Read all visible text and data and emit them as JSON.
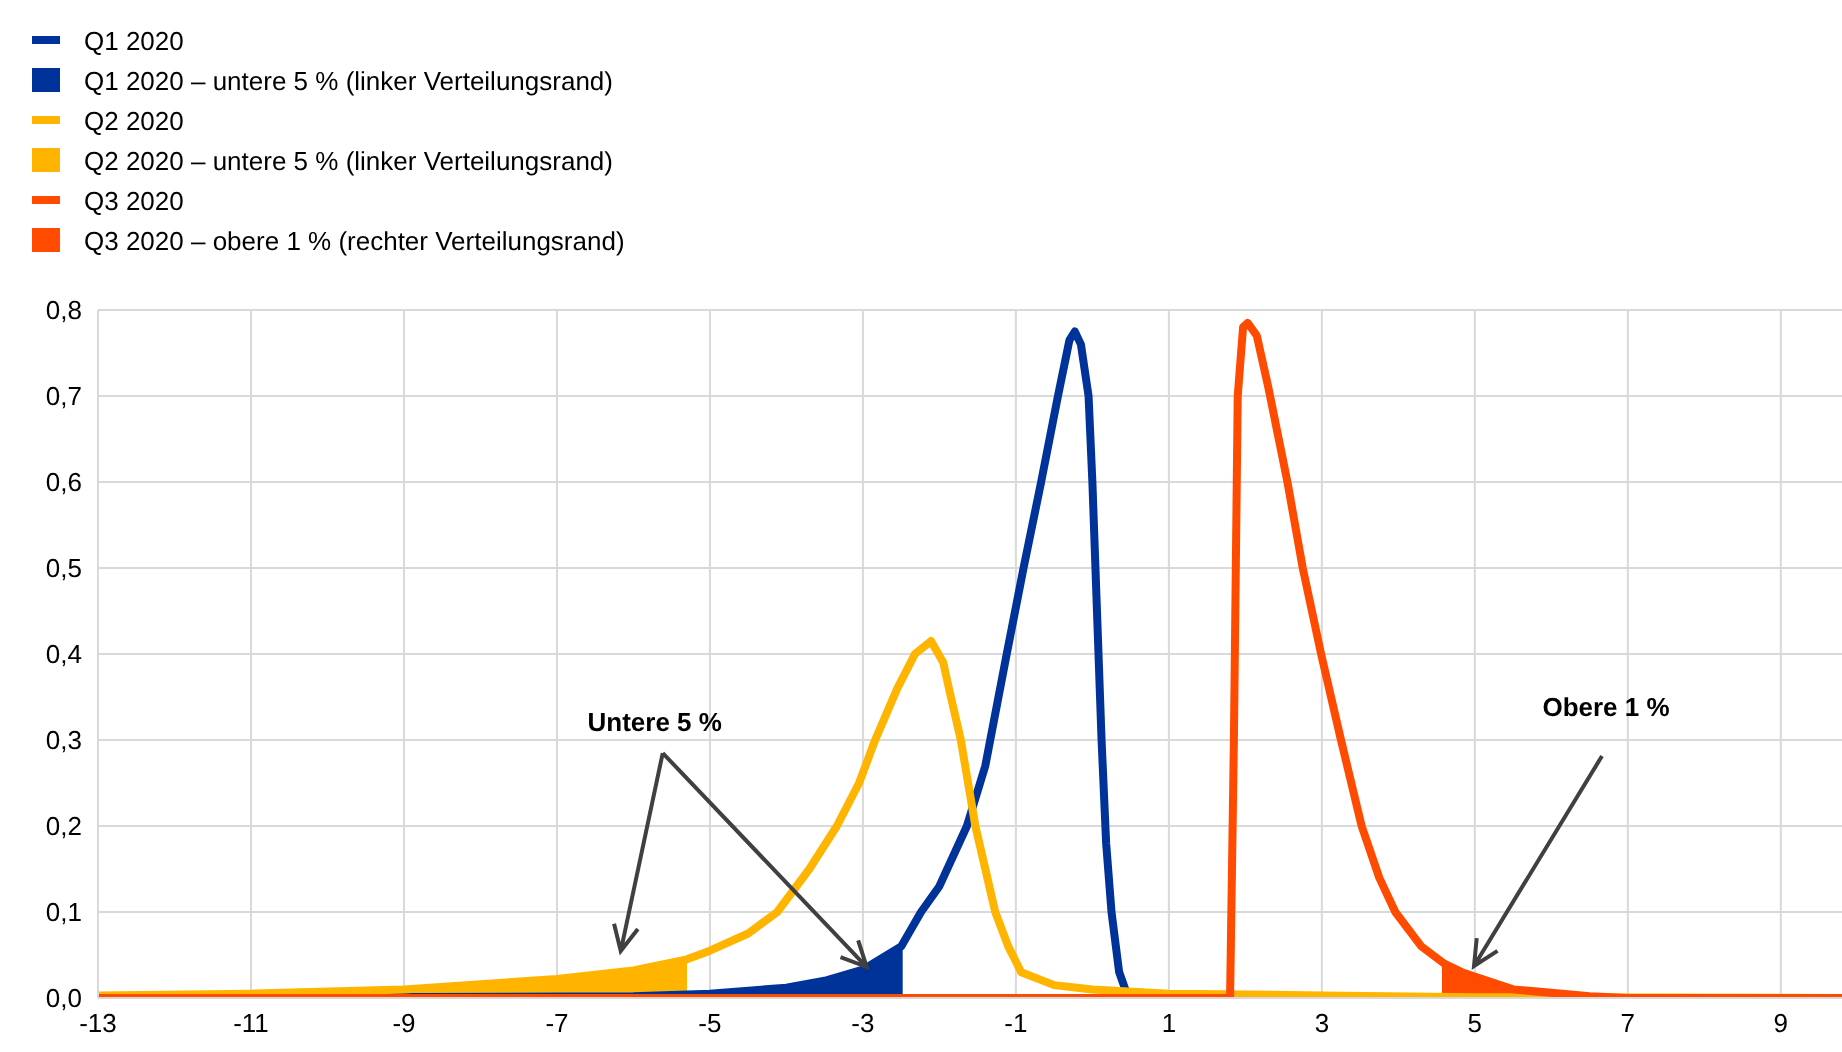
{
  "chart_data": {
    "type": "line",
    "xlim": [
      -13,
      9.8
    ],
    "xticks": [
      -13,
      -11,
      -9,
      -7,
      -5,
      -3,
      -1,
      1,
      3,
      5,
      7,
      9
    ],
    "ylim": [
      0,
      0.8
    ],
    "yticks": [
      {
        "value": 0,
        "label": "0,0"
      },
      {
        "value": 0.1,
        "label": "0,1"
      },
      {
        "value": 0.2,
        "label": "0,2"
      },
      {
        "value": 0.3,
        "label": "0,3"
      },
      {
        "value": 0.4,
        "label": "0,4"
      },
      {
        "value": 0.5,
        "label": "0,5"
      },
      {
        "value": 0.6,
        "label": "0,6"
      },
      {
        "value": 0.7,
        "label": "0,7"
      },
      {
        "value": 0.8,
        "label": "0,8"
      }
    ],
    "grid": true,
    "legend": "top left",
    "marker": "none",
    "line_style": "solid",
    "annotations": [
      {
        "text": "Untere 5 %",
        "x": -2.95,
        "y": 0.036
      },
      "Obere 1 %"
    ],
    "series": [
      {
        "name": "Q1 2020",
        "type": "line",
        "color": "#003399",
        "x": [
          -13,
          -6,
          -5,
          -4,
          -3.5,
          -3,
          -2.5,
          -2.24,
          -2,
          -1.64,
          -1.4,
          -1.12,
          -0.9,
          -0.67,
          -0.45,
          -0.3,
          -0.23,
          -0.15,
          -0.05,
          0,
          0.06,
          0.12,
          0.18,
          0.25,
          0.35,
          0.45,
          0.6,
          9.8
        ],
        "values": [
          0,
          0.002,
          0.005,
          0.012,
          0.02,
          0.033,
          0.06,
          0.1,
          0.13,
          0.2,
          0.27,
          0.4,
          0.5,
          0.6,
          0.7,
          0.765,
          0.775,
          0.76,
          0.7,
          0.6,
          0.45,
          0.3,
          0.18,
          0.1,
          0.03,
          0.005,
          0,
          0
        ]
      },
      {
        "name": "Q1 2020 – untere 5 % (linker Verteilungsrand)",
        "type": "area",
        "color": "#003399",
        "x": [
          -13,
          -6,
          -5,
          -4,
          -3.5,
          -3,
          -2.48
        ],
        "values": [
          0,
          0.002,
          0.005,
          0.012,
          0.02,
          0.033,
          0.058
        ]
      },
      {
        "name": "Q2 2020",
        "type": "line",
        "color": "#ffb400",
        "x": [
          -13,
          -11,
          -9,
          -7,
          -6,
          -5.3,
          -5,
          -4.5,
          -4.12,
          -3.7,
          -3.34,
          -3.05,
          -2.84,
          -2.55,
          -2.32,
          -2.11,
          -1.95,
          -1.85,
          -1.72,
          -1.53,
          -1.27,
          -1.1,
          -0.93,
          -0.5,
          0,
          1,
          3,
          5,
          9.8
        ],
        "values": [
          0.003,
          0.005,
          0.01,
          0.022,
          0.032,
          0.045,
          0.055,
          0.075,
          0.1,
          0.15,
          0.2,
          0.25,
          0.3,
          0.36,
          0.4,
          0.415,
          0.39,
          0.35,
          0.3,
          0.2,
          0.1,
          0.06,
          0.03,
          0.015,
          0.01,
          0.005,
          0.003,
          0.001,
          0
        ]
      },
      {
        "name": "Q2 2020 – untere 5 % (linker Verteilungsrand)",
        "type": "area",
        "color": "#ffb400",
        "x": [
          -13,
          -11,
          -9,
          -7,
          -6,
          -5.3
        ],
        "values": [
          0.003,
          0.005,
          0.01,
          0.022,
          0.032,
          0.045
        ]
      },
      {
        "name": "Q3 2020",
        "type": "line",
        "color": "#ff4b00",
        "x": [
          -13,
          1.8,
          1.85,
          1.9,
          1.97,
          2.03,
          2.15,
          2.3,
          2.55,
          2.75,
          2.99,
          3.25,
          3.52,
          3.75,
          3.96,
          4.3,
          4.6,
          4.83,
          5.5,
          6.5,
          7,
          9.8
        ],
        "values": [
          0,
          0,
          0.3,
          0.7,
          0.78,
          0.785,
          0.77,
          0.71,
          0.6,
          0.5,
          0.4,
          0.3,
          0.2,
          0.14,
          0.1,
          0.06,
          0.04,
          0.03,
          0.01,
          0.002,
          0,
          0
        ]
      },
      {
        "name": "Q3 2020 – obere 1 % (rechter Verteilungsrand)",
        "type": "area",
        "color": "#ff4b00",
        "x": [
          4.57,
          4.6,
          4.83,
          5.5
        ],
        "values": [
          0.042,
          0.04,
          0.03,
          0.01
        ]
      }
    ]
  }
}
